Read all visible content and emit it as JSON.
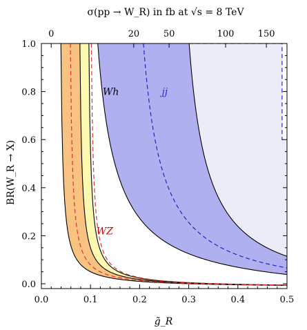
{
  "chart_data": {
    "type": "area",
    "title": "σ(pp → W_R) in fb at √s = 8 TeV",
    "xlabel": "g̃_R",
    "ylabel": "BR(W_R → X)",
    "xlim": [
      0.0,
      0.5
    ],
    "ylim": [
      -0.02,
      1.0
    ],
    "x_ticks": [
      0.0,
      0.1,
      0.2,
      0.3,
      0.4,
      0.5
    ],
    "x_tick_labels": [
      "0.0",
      "0.1",
      "0.2",
      "0.3",
      "0.4",
      "0.5"
    ],
    "y_ticks": [
      0.0,
      0.2,
      0.4,
      0.6,
      0.8,
      1.0
    ],
    "y_tick_labels": [
      "0.0",
      "0.2",
      "0.4",
      "0.6",
      "0.8",
      "1.0"
    ],
    "top_axis": {
      "ticks": [
        0,
        20,
        50,
        100,
        150
      ],
      "tick_positions_in_x": [
        0.02,
        0.188,
        0.26,
        0.375,
        0.458
      ]
    },
    "annotations": [
      {
        "text": "Wh",
        "x": 0.125,
        "y": 0.8,
        "color": "#000000"
      },
      {
        "text": "jj",
        "x": 0.245,
        "y": 0.8,
        "color": "#3333cc"
      },
      {
        "text": "WZ",
        "x": 0.112,
        "y": 0.22,
        "color": "#cc0000"
      }
    ],
    "colors": {
      "wz_fill": "#f8c281",
      "wh_fill": "#fdf8b0",
      "jj_fill": "#b0b0f0",
      "jj_outer_fill": "#ececf8",
      "wz_dashed": "#dd3333",
      "jj_dashed": "#2222cc",
      "boundary": "#000000"
    },
    "curves": {
      "wz_low": {
        "k": 0.00427,
        "x0": 0.0355,
        "y0": -0.016
      },
      "wz_dashed": {
        "k": 0.00427,
        "x0": 0.0549,
        "y0": -0.016
      },
      "wz_high": {
        "k": 0.00427,
        "x0": 0.0742,
        "y0": -0.016
      },
      "wh_high": {
        "k": 0.00427,
        "x0": 0.0925,
        "y0": -0.016
      },
      "wh_red_dashed": {
        "k": 0.00427,
        "x0": 0.0975,
        "y0": -0.016
      },
      "jj_low": {
        "k": 0.041,
        "x0": 0.076,
        "y0": -0.058
      },
      "jj_dashed": {
        "k": 0.041,
        "x0": 0.169,
        "y0": -0.058
      },
      "jj_high": {
        "k": 0.041,
        "x0": 0.262,
        "y0": -0.058
      }
    },
    "jj_outer_dashed_right": [
      [
        0.49,
        0.6
      ],
      [
        0.5,
        0.6
      ]
    ]
  }
}
